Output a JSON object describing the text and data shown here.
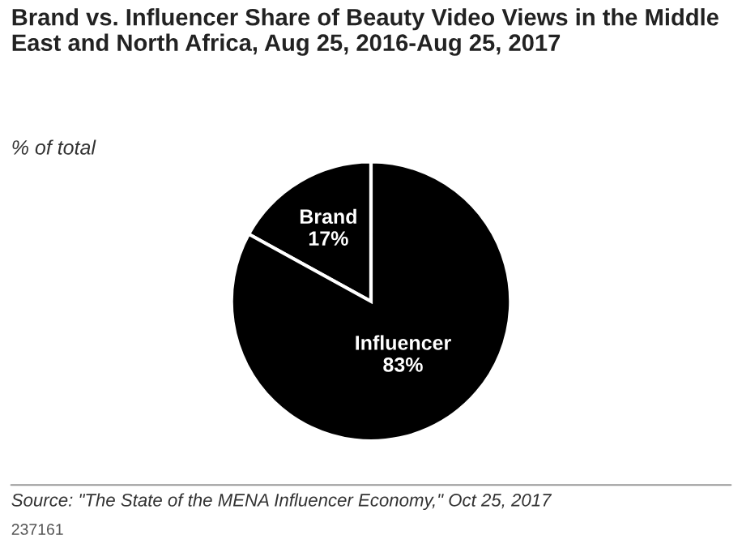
{
  "chart_data": {
    "type": "pie",
    "title": "Brand vs. Influencer Share of Beauty Video Views in the Middle East and North Africa, Aug 25, 2016-Aug 25, 2017",
    "subtitle": "% of total",
    "categories": [
      "Brand",
      "Influencer"
    ],
    "values": [
      17,
      83
    ],
    "value_labels": [
      "17%",
      "83%"
    ],
    "colors": [
      "#000000",
      "#000000"
    ],
    "annotations": [
      "Source: \"The State of the MENA Influencer Economy,\" Oct 25, 2017",
      "237161"
    ]
  }
}
